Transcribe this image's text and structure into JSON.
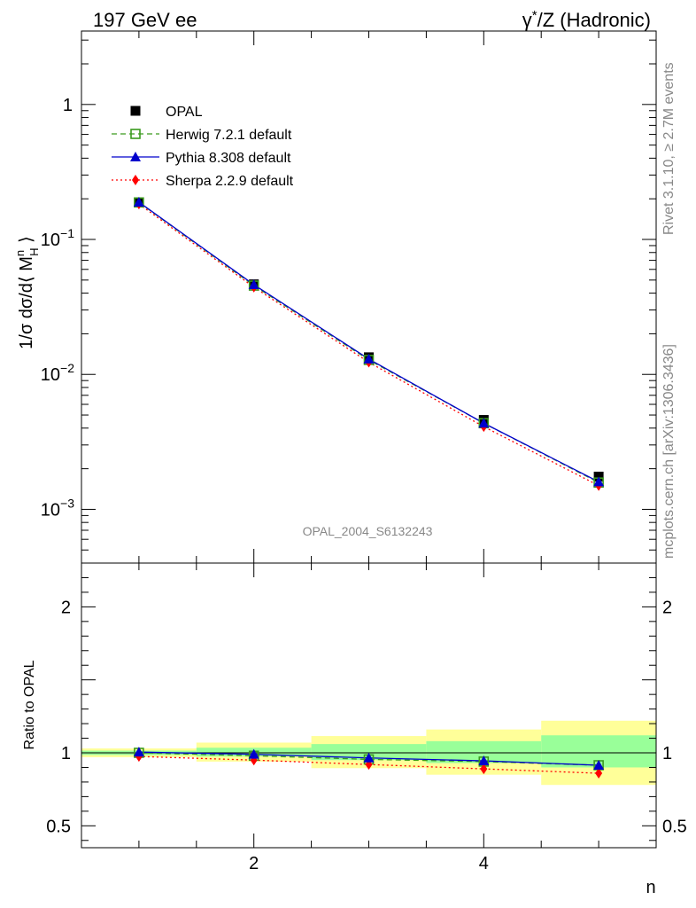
{
  "header": {
    "left": "197 GeV ee",
    "right_sup": "*",
    "right": "/Z (Hadronic)",
    "right_gamma": "γ"
  },
  "side": {
    "rivet": "Rivet 3.1.10, ≥ 2.7M events",
    "mcplots": "mcplots.cern.ch [arXiv:1306.3436]"
  },
  "watermark": "OPAL_2004_S6132243",
  "colors": {
    "data": "#000000",
    "herwig": "#3a9a1e",
    "pythia": "#0000cc",
    "sherpa": "#ff0000",
    "band_inner": "#99ff99",
    "band_outer": "#ffff99"
  },
  "chart_data": [
    {
      "type": "scatter",
      "yscale": "log",
      "ylabel_parts": [
        "1/σ dσ/d⟨ M",
        "n",
        "H",
        " ⟩"
      ],
      "xlim": [
        0.5,
        5.5
      ],
      "ylim": [
        0.0004,
        3.5
      ],
      "yticklabels": [
        {
          "value": 1,
          "label": "1"
        },
        {
          "value": 0.1,
          "base": "10",
          "exp": "−1"
        },
        {
          "value": 0.01,
          "base": "10",
          "exp": "−2"
        },
        {
          "value": 0.001,
          "base": "10",
          "exp": "−3"
        }
      ],
      "legend_position": "top-left",
      "x": [
        1,
        2,
        3,
        4,
        5
      ],
      "series": [
        {
          "name": "OPAL",
          "marker": "square",
          "values": [
            0.188,
            0.0465,
            0.0134,
            0.0046,
            0.00175
          ]
        },
        {
          "name": "Herwig 7.2.1 default",
          "marker": "open-square",
          "line": "dashed",
          "values": [
            0.188,
            0.0455,
            0.0128,
            0.00435,
            0.00158
          ]
        },
        {
          "name": "Pythia 8.308 default",
          "marker": "triangle",
          "line": "solid",
          "values": [
            0.189,
            0.0462,
            0.013,
            0.00435,
            0.0016
          ]
        },
        {
          "name": "Sherpa 2.2.9 default",
          "marker": "diamond",
          "line": "dotted",
          "values": [
            0.183,
            0.0443,
            0.0123,
            0.0041,
            0.0015
          ]
        }
      ]
    },
    {
      "type": "line",
      "ylabel": "Ratio to OPAL",
      "xlabel": "n",
      "xlim": [
        0.5,
        5.5
      ],
      "ylim": [
        0.35,
        2.3
      ],
      "xticklabels": [
        "2",
        "4"
      ],
      "yticklabels": [
        "2",
        "1",
        "0.5"
      ],
      "x": [
        1,
        2,
        3,
        4,
        5
      ],
      "bands": {
        "edges": [
          [
            0.5,
            1.5
          ],
          [
            1.5,
            2.5
          ],
          [
            2.5,
            3.5
          ],
          [
            3.5,
            4.5
          ],
          [
            4.5,
            5.5
          ]
        ],
        "inner": [
          [
            0.985,
            1.015
          ],
          [
            0.975,
            1.035
          ],
          [
            0.95,
            1.06
          ],
          [
            0.93,
            1.08
          ],
          [
            0.9,
            1.12
          ]
        ],
        "outer": [
          [
            0.97,
            1.03
          ],
          [
            0.94,
            1.07
          ],
          [
            0.895,
            1.115
          ],
          [
            0.85,
            1.16
          ],
          [
            0.78,
            1.22
          ]
        ]
      },
      "series": [
        {
          "name": "Herwig 7.2.1 default",
          "values": [
            1.0,
            0.98,
            0.955,
            0.94,
            0.915
          ]
        },
        {
          "name": "Pythia 8.308 default",
          "values": [
            1.005,
            0.99,
            0.965,
            0.945,
            0.915
          ]
        },
        {
          "name": "Sherpa 2.2.9 default",
          "values": [
            0.975,
            0.95,
            0.92,
            0.89,
            0.86
          ]
        }
      ]
    }
  ]
}
